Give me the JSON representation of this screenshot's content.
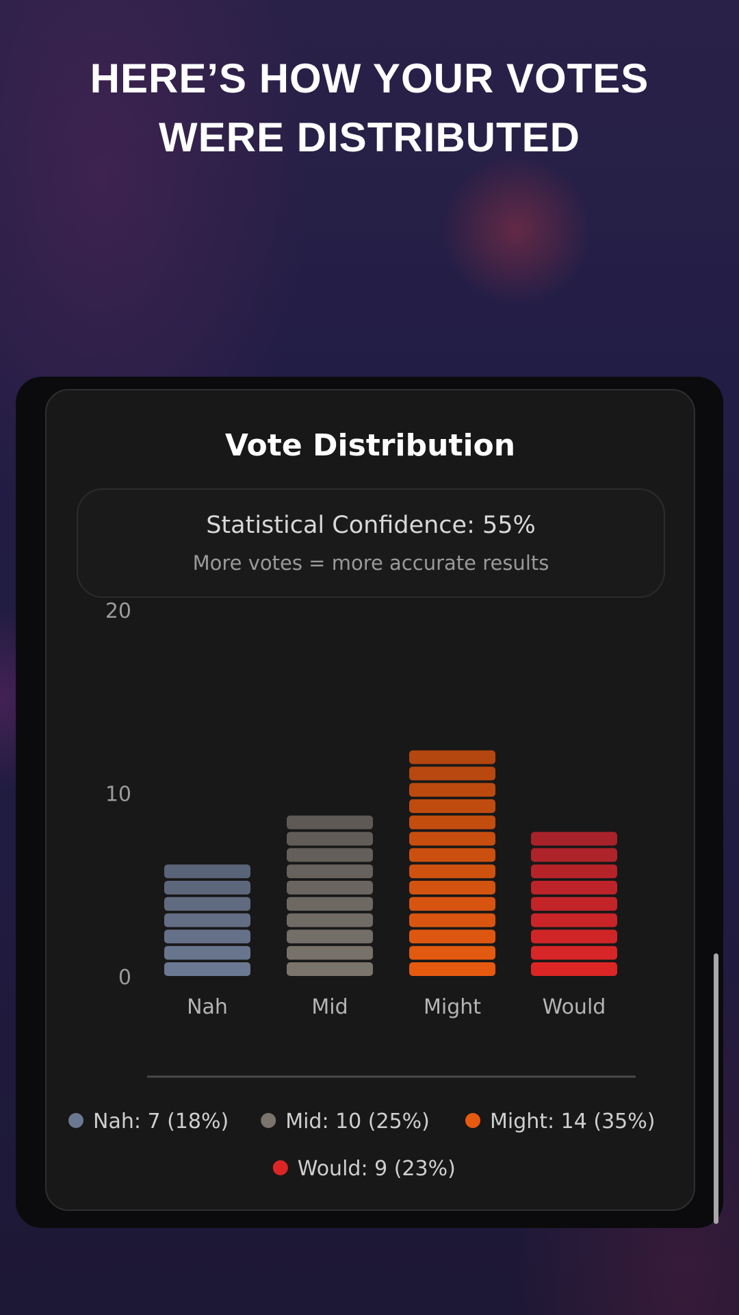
{
  "headline": {
    "line1": "HERE’S HOW YOUR VOTES",
    "line2": "WERE DISTRIBUTED"
  },
  "card": {
    "title": "Vote Distribution",
    "confidence_text": "Statistical Confidence: 55%",
    "confidence_sub": "More votes = more accurate results"
  },
  "chart_data": {
    "type": "bar",
    "title": "",
    "xlabel": "",
    "ylabel": "",
    "categories": [
      "Nah",
      "Mid",
      "Might",
      "Would"
    ],
    "values": [
      7,
      10,
      14,
      9
    ],
    "yticks": [
      0,
      10,
      20
    ],
    "ylim": [
      0,
      20
    ],
    "grid": false,
    "colors": {
      "Nah": [
        "#5a6478",
        "#6b7891"
      ],
      "Mid": [
        "#5e5955",
        "#7a746d"
      ],
      "Might": [
        "#b4470f",
        "#e65a10"
      ],
      "Would": [
        "#a8222a",
        "#dc2626"
      ]
    },
    "legend": [
      {
        "label": "Nah: 7 (18%)",
        "color": "#6b7891"
      },
      {
        "label": "Mid: 10 (25%)",
        "color": "#7a746d"
      },
      {
        "label": "Might: 14 (35%)",
        "color": "#e65a10"
      },
      {
        "label": "Would: 9 (23%)",
        "color": "#dc2626"
      }
    ]
  }
}
